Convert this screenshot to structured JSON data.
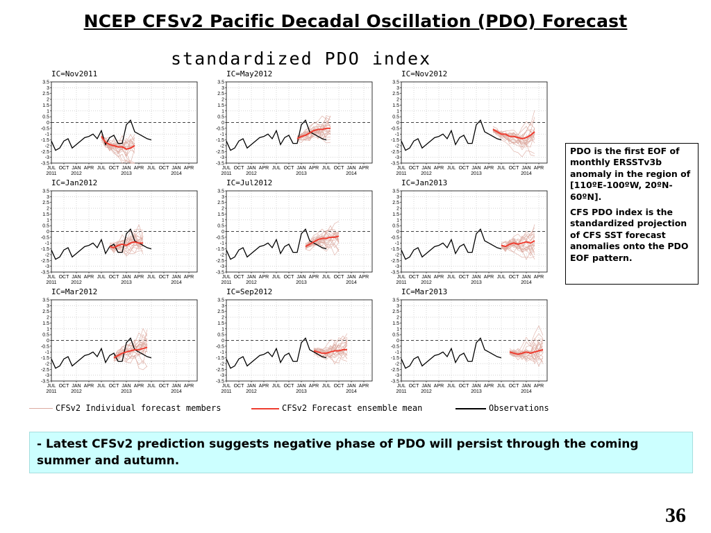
{
  "slide": {
    "title": "NCEP CFSv2 Pacific Decadal Oscillation (PDO) Forecast",
    "number": "36"
  },
  "figure": {
    "title": "standardized PDO index"
  },
  "legend": {
    "members": "CFSv2 Individual forecast members",
    "mean": "CFSv2 Forecast ensemble mean",
    "observations": "Observations"
  },
  "colors": {
    "members": "#dcaaa0",
    "mean": "#ee3b2e",
    "observations": "#000000",
    "summary_bg": "#ccffff"
  },
  "note": {
    "paragraph1": "PDO  is the first EOF of monthly ERSSTv3b anomaly  in the region of [110ºE-100ºW, 20ºN-60ºN].",
    "paragraph2": "CFS PDO index  is  the standardized projection of CFS SST forecast anomalies onto the PDO EOF pattern."
  },
  "summary": {
    "text": "- Latest CFSv2 prediction suggests negative phase of PDO will persist through the coming summer and autumn."
  },
  "chart_data": [
    {
      "type": "line",
      "title": "IC=Nov2011",
      "y_ticks": [
        "3.5",
        "3",
        "2.5",
        "2",
        "1.5",
        "1",
        "0.5",
        "0",
        "-0.5",
        "-1",
        "-1.5",
        "-2",
        "-2.5",
        "-3",
        "-3.5"
      ],
      "ylim": [
        -3.5,
        3.5
      ],
      "x_ticks": [
        "JUL",
        "OCT",
        "JAN",
        "APR",
        "JUL",
        "OCT",
        "JAN",
        "APR",
        "JUL",
        "OCT",
        "JAN",
        "APR"
      ],
      "year_labels": [
        "2011",
        "2012",
        "2013",
        "2014"
      ],
      "observations": {
        "start": 0,
        "values": [
          -1.6,
          -2.4,
          -2.2,
          -1.6,
          -1.4,
          -2.2,
          -1.9,
          -1.6,
          -1.3,
          -1.2,
          -1.0,
          -1.4,
          -0.7,
          -1.9,
          -1.3,
          -1.1,
          -1.8,
          -1.8,
          -0.2,
          0.2,
          -0.8,
          -1.0,
          -1.2,
          -1.4,
          -1.5
        ]
      },
      "ensemble_mean": {
        "start": 12,
        "values": [
          -1.2,
          -1.7,
          -1.9,
          -2.0,
          -2.1,
          -2.1,
          -2.3,
          -2.2,
          -2.0
        ]
      },
      "members": {
        "start": 12,
        "count": 20,
        "spread": 1.2
      }
    },
    {
      "type": "line",
      "title": "IC=May2012",
      "y_ticks": [
        "3.5",
        "3",
        "2.5",
        "2",
        "1.5",
        "1",
        "0.5",
        "0",
        "-0.5",
        "-1",
        "-1.5",
        "-2",
        "-2.5",
        "-3",
        "-3.5"
      ],
      "ylim": [
        -3.5,
        3.5
      ],
      "x_ticks": [
        "JUL",
        "OCT",
        "JAN",
        "APR",
        "JUL",
        "OCT",
        "JAN",
        "APR",
        "JUL",
        "OCT",
        "JAN",
        "APR"
      ],
      "year_labels": [
        "2011",
        "2012",
        "2013",
        "2014"
      ],
      "observations": {
        "start": 0,
        "values": [
          -1.6,
          -2.4,
          -2.2,
          -1.6,
          -1.4,
          -2.2,
          -1.9,
          -1.6,
          -1.3,
          -1.2,
          -1.0,
          -1.4,
          -0.7,
          -1.9,
          -1.3,
          -1.1,
          -1.8,
          -1.8,
          -0.2,
          0.2,
          -0.8,
          -1.0,
          -1.2,
          -1.4,
          -1.5
        ]
      },
      "ensemble_mean": {
        "start": 17,
        "values": [
          -1.4,
          -1.2,
          -1.1,
          -0.9,
          -0.7,
          -0.6,
          -0.6,
          -0.5,
          -0.5
        ]
      },
      "members": {
        "start": 17,
        "count": 20,
        "spread": 1.1
      }
    },
    {
      "type": "line",
      "title": "IC=Nov2012",
      "y_ticks": [
        "3.5",
        "3",
        "2.5",
        "2",
        "1.5",
        "1",
        "0.5",
        "0",
        "-0.5",
        "-1",
        "-1.5",
        "-2",
        "-2.5",
        "-3",
        "-3.5"
      ],
      "ylim": [
        -3.5,
        3.5
      ],
      "x_ticks": [
        "JUL",
        "OCT",
        "JAN",
        "APR",
        "JUL",
        "OCT",
        "JAN",
        "APR",
        "JUL",
        "OCT",
        "JAN",
        "APR"
      ],
      "year_labels": [
        "2011",
        "2012",
        "2013",
        "2014"
      ],
      "observations": {
        "start": 0,
        "values": [
          -1.6,
          -2.4,
          -2.2,
          -1.6,
          -1.4,
          -2.2,
          -1.9,
          -1.6,
          -1.3,
          -1.2,
          -1.0,
          -1.4,
          -0.7,
          -1.9,
          -1.3,
          -1.1,
          -1.8,
          -1.8,
          -0.2,
          0.2,
          -0.8,
          -1.0,
          -1.2,
          -1.4,
          -1.5
        ]
      },
      "ensemble_mean": {
        "start": 22,
        "values": [
          -0.6,
          -0.8,
          -1.0,
          -1.0,
          -1.2,
          -1.2,
          -1.3,
          -1.4,
          -1.3,
          -1.1,
          -0.8
        ]
      },
      "members": {
        "start": 22,
        "count": 20,
        "spread": 1.0
      }
    },
    {
      "type": "line",
      "title": "IC=Jan2012",
      "y_ticks": [
        "3.5",
        "3",
        "2.5",
        "2",
        "1.5",
        "1",
        "0.5",
        "0",
        "-0.5",
        "-1",
        "-1.5",
        "-2",
        "-2.5",
        "-3",
        "-3.5"
      ],
      "ylim": [
        -3.5,
        3.5
      ],
      "x_ticks": [
        "JUL",
        "OCT",
        "JAN",
        "APR",
        "JUL",
        "OCT",
        "JAN",
        "APR",
        "JUL",
        "OCT",
        "JAN",
        "APR"
      ],
      "year_labels": [
        "2011",
        "2012",
        "2013",
        "2014"
      ],
      "observations": {
        "start": 0,
        "values": [
          -1.6,
          -2.4,
          -2.2,
          -1.6,
          -1.4,
          -2.2,
          -1.9,
          -1.6,
          -1.3,
          -1.2,
          -1.0,
          -1.4,
          -0.7,
          -1.9,
          -1.3,
          -1.1,
          -1.8,
          -1.8,
          -0.2,
          0.2,
          -0.8,
          -1.0,
          -1.2,
          -1.4,
          -1.5
        ]
      },
      "ensemble_mean": {
        "start": 14,
        "values": [
          -1.3,
          -1.4,
          -1.2,
          -1.1,
          -1.2,
          -1.0,
          -0.9,
          -1.0,
          -1.0
        ]
      },
      "members": {
        "start": 14,
        "count": 20,
        "spread": 1.1
      }
    },
    {
      "type": "line",
      "title": "IC=Jul2012",
      "y_ticks": [
        "3.5",
        "3",
        "2.5",
        "2",
        "1.5",
        "1",
        "0.5",
        "0",
        "-0.5",
        "-1",
        "-1.5",
        "-2",
        "-2.5",
        "-3",
        "-3.5"
      ],
      "ylim": [
        -3.5,
        3.5
      ],
      "x_ticks": [
        "JUL",
        "OCT",
        "JAN",
        "APR",
        "JUL",
        "OCT",
        "JAN",
        "APR",
        "JUL",
        "OCT",
        "JAN",
        "APR"
      ],
      "year_labels": [
        "2011",
        "2012",
        "2013",
        "2014"
      ],
      "observations": {
        "start": 0,
        "values": [
          -1.6,
          -2.4,
          -2.2,
          -1.6,
          -1.4,
          -2.2,
          -1.9,
          -1.6,
          -1.3,
          -1.2,
          -1.0,
          -1.4,
          -0.7,
          -1.9,
          -1.3,
          -1.1,
          -1.8,
          -1.8,
          -0.2,
          0.2,
          -0.8,
          -1.0,
          -1.2,
          -1.4,
          -1.5
        ]
      },
      "ensemble_mean": {
        "start": 19,
        "values": [
          -1.3,
          -1.1,
          -0.9,
          -0.7,
          -0.6,
          -0.6,
          -0.5,
          -0.5,
          -0.4
        ]
      },
      "members": {
        "start": 19,
        "count": 20,
        "spread": 1.1
      }
    },
    {
      "type": "line",
      "title": "IC=Jan2013",
      "y_ticks": [
        "3.5",
        "3",
        "2.5",
        "2",
        "1.5",
        "1",
        "0.5",
        "0",
        "-0.5",
        "-1",
        "-1.5",
        "-2",
        "-2.5",
        "-3",
        "-3.5"
      ],
      "ylim": [
        -3.5,
        3.5
      ],
      "x_ticks": [
        "JUL",
        "OCT",
        "JAN",
        "APR",
        "JUL",
        "OCT",
        "JAN",
        "APR",
        "JUL",
        "OCT",
        "JAN",
        "APR"
      ],
      "year_labels": [
        "2011",
        "2012",
        "2013",
        "2014"
      ],
      "observations": {
        "start": 0,
        "values": [
          -1.6,
          -2.4,
          -2.2,
          -1.6,
          -1.4,
          -2.2,
          -1.9,
          -1.6,
          -1.3,
          -1.2,
          -1.0,
          -1.4,
          -0.7,
          -1.9,
          -1.3,
          -1.1,
          -1.8,
          -1.8,
          -0.2,
          0.2,
          -0.8,
          -1.0,
          -1.2,
          -1.4,
          -1.5
        ]
      },
      "ensemble_mean": {
        "start": 24,
        "values": [
          -1.2,
          -1.3,
          -1.1,
          -1.0,
          -1.1,
          -1.0,
          -0.9,
          -1.0,
          -0.8
        ]
      },
      "members": {
        "start": 24,
        "count": 20,
        "spread": 1.1
      }
    },
    {
      "type": "line",
      "title": "IC=Mar2012",
      "y_ticks": [
        "3.5",
        "3",
        "2.5",
        "2",
        "1.5",
        "1",
        "0.5",
        "0",
        "-0.5",
        "-1",
        "-1.5",
        "-2",
        "-2.5",
        "-3",
        "-3.5"
      ],
      "ylim": [
        -3.5,
        3.5
      ],
      "x_ticks": [
        "JUL",
        "OCT",
        "JAN",
        "APR",
        "JUL",
        "OCT",
        "JAN",
        "APR",
        "JUL",
        "OCT",
        "JAN",
        "APR"
      ],
      "year_labels": [
        "2011",
        "2012",
        "2013",
        "2014"
      ],
      "observations": {
        "start": 0,
        "values": [
          -1.6,
          -2.4,
          -2.2,
          -1.6,
          -1.4,
          -2.2,
          -1.9,
          -1.6,
          -1.3,
          -1.2,
          -1.0,
          -1.4,
          -0.7,
          -1.9,
          -1.3,
          -1.1,
          -1.8,
          -1.8,
          -0.2,
          0.2,
          -0.8,
          -1.0,
          -1.2,
          -1.4,
          -1.5
        ]
      },
      "ensemble_mean": {
        "start": 15,
        "values": [
          -1.5,
          -1.3,
          -1.1,
          -1.0,
          -0.9,
          -0.8,
          -0.8,
          -0.7,
          -0.6
        ]
      },
      "members": {
        "start": 15,
        "count": 20,
        "spread": 1.2
      }
    },
    {
      "type": "line",
      "title": "IC=Sep2012",
      "y_ticks": [
        "3.5",
        "3",
        "2.5",
        "2",
        "1.5",
        "1",
        "0.5",
        "0",
        "-0.5",
        "-1",
        "-1.5",
        "-2",
        "-2.5",
        "-3",
        "-3.5"
      ],
      "ylim": [
        -3.5,
        3.5
      ],
      "x_ticks": [
        "JUL",
        "OCT",
        "JAN",
        "APR",
        "JUL",
        "OCT",
        "JAN",
        "APR",
        "JUL",
        "OCT",
        "JAN",
        "APR"
      ],
      "year_labels": [
        "2011",
        "2012",
        "2013",
        "2014"
      ],
      "observations": {
        "start": 0,
        "values": [
          -1.6,
          -2.4,
          -2.2,
          -1.6,
          -1.4,
          -2.2,
          -1.9,
          -1.6,
          -1.3,
          -1.2,
          -1.0,
          -1.4,
          -0.7,
          -1.9,
          -1.3,
          -1.1,
          -1.8,
          -1.8,
          -0.2,
          0.2,
          -0.8,
          -1.0,
          -1.2,
          -1.4,
          -1.5
        ]
      },
      "ensemble_mean": {
        "start": 21,
        "values": [
          -0.9,
          -1.0,
          -1.1,
          -1.1,
          -1.0,
          -0.9,
          -0.9,
          -0.8,
          -0.8
        ]
      },
      "members": {
        "start": 21,
        "count": 20,
        "spread": 1.1
      }
    },
    {
      "type": "line",
      "title": "IC=Mar2013",
      "y_ticks": [
        "3.5",
        "3",
        "2.5",
        "2",
        "1.5",
        "1",
        "0.5",
        "0",
        "-0.5",
        "-1",
        "-1.5",
        "-2",
        "-2.5",
        "-3",
        "-3.5"
      ],
      "ylim": [
        -3.5,
        3.5
      ],
      "x_ticks": [
        "JUL",
        "OCT",
        "JAN",
        "APR",
        "JUL",
        "OCT",
        "JAN",
        "APR",
        "JUL",
        "OCT",
        "JAN",
        "APR"
      ],
      "year_labels": [
        "2011",
        "2012",
        "2013",
        "2014"
      ],
      "observations": {
        "start": 0,
        "values": [
          -1.6,
          -2.4,
          -2.2,
          -1.6,
          -1.4,
          -2.2,
          -1.9,
          -1.6,
          -1.3,
          -1.2,
          -1.0,
          -1.4,
          -0.7,
          -1.9,
          -1.3,
          -1.1,
          -1.8,
          -1.8,
          -0.2,
          0.2,
          -0.8,
          -1.0,
          -1.2,
          -1.4,
          -1.5
        ]
      },
      "ensemble_mean": {
        "start": 26,
        "values": [
          -1.0,
          -1.1,
          -1.2,
          -1.1,
          -1.0,
          -1.1,
          -1.0,
          -0.9,
          -0.8
        ]
      },
      "members": {
        "start": 26,
        "count": 20,
        "spread": 1.1
      }
    }
  ]
}
